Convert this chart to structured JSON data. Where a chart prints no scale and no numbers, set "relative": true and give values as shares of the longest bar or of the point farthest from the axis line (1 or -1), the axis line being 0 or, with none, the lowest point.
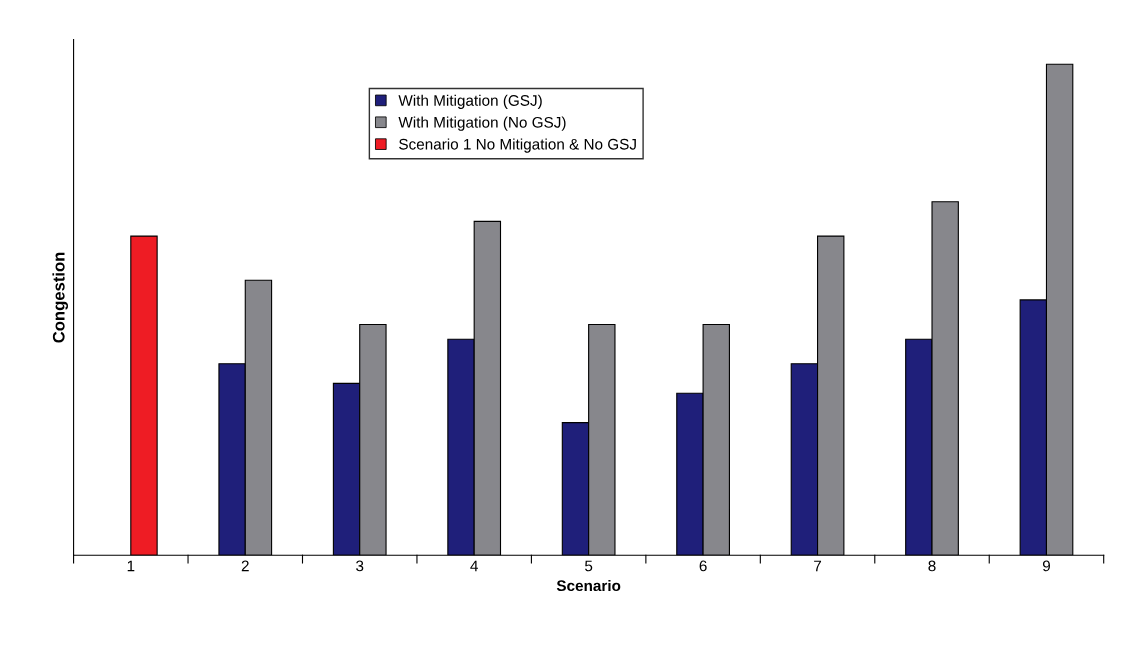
{
  "chart_data": {
    "type": "bar",
    "xlabel": "Scenario",
    "ylabel": "Congestion",
    "relative": true,
    "categories": [
      "1",
      "2",
      "3",
      "4",
      "5",
      "6",
      "7",
      "8",
      "9"
    ],
    "series": [
      {
        "name": "With Mitigation (GSJ)",
        "color": "#1f1f7a",
        "values": [
          null,
          0.39,
          0.35,
          0.44,
          0.27,
          0.33,
          0.39,
          0.44,
          0.52
        ]
      },
      {
        "name": "With Mitigation (No GSJ)",
        "color": "#87878c",
        "values": [
          null,
          0.56,
          0.47,
          0.68,
          0.47,
          0.47,
          0.65,
          0.72,
          1.0
        ]
      },
      {
        "name": "Scenario 1 No Mitigation & No GSJ",
        "color": "#ee1c24",
        "values": [
          0.65,
          null,
          null,
          null,
          null,
          null,
          null,
          null,
          null
        ]
      }
    ],
    "legend": "top",
    "grid": false
  }
}
